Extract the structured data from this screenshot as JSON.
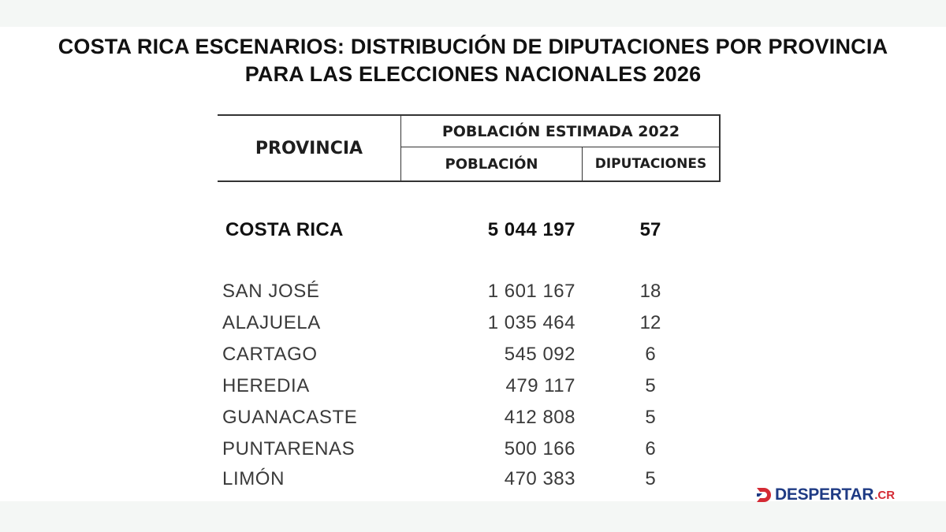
{
  "title": {
    "line1": "COSTA RICA ESCENARIOS: DISTRIBUCIÓN DE DIPUTACIONES POR PROVINCIA",
    "line2": "PARA LAS ELECCIONES NACIONALES 2026"
  },
  "table": {
    "headers": {
      "provincia": "PROVINCIA",
      "group": "POBLACIÓN ESTIMADA 2022",
      "poblacion": "POBLACIÓN",
      "diputaciones": "DIPUTACIONES"
    },
    "total": {
      "name": "COSTA RICA",
      "population": "5 044 197",
      "seats": "57"
    },
    "rows": [
      {
        "name": "SAN JOSÉ",
        "population": "1 601 167",
        "seats": "18"
      },
      {
        "name": "ALAJUELA",
        "population": "1 035 464",
        "seats": "12"
      },
      {
        "name": "CARTAGO",
        "population": "545 092",
        "seats": "6"
      },
      {
        "name": "HEREDIA",
        "population": "479 117",
        "seats": "5"
      },
      {
        "name": "GUANACASTE",
        "population": "412 808",
        "seats": "5"
      },
      {
        "name": "PUNTARENAS",
        "population": "500 166",
        "seats": "6"
      },
      {
        "name": "LIMÓN",
        "population": "470 383",
        "seats": "5"
      }
    ]
  },
  "logo": {
    "icon": "despertar-d-mark-icon",
    "wordmark": "DESPERTAR",
    "tld": ".CR",
    "colors": {
      "primary": "#1f3b84",
      "accent": "#d42a34"
    }
  }
}
